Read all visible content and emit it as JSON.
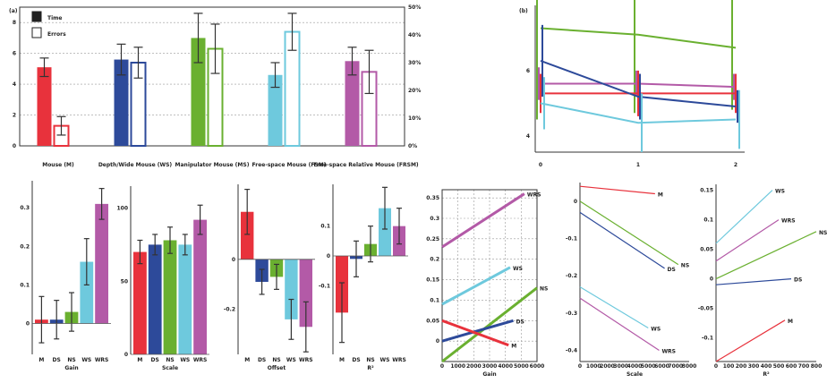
{
  "chart_data": [
    {
      "type": "bar",
      "panel": "(a)",
      "legend": [
        {
          "label": "Time",
          "fill": "#222222"
        },
        {
          "label": "Errors",
          "fill": "#ffffff"
        }
      ],
      "categories": [
        "Mouse (M)",
        "Depth/Wide Mouse (WS)",
        "Manipulator Mouse (MS)",
        "Free-space Mouse (FSM)",
        "Free-space Relative Mouse (FRSM)"
      ],
      "colors": [
        "#e8323c",
        "#2d4a9a",
        "#6ab030",
        "#6ec9dd",
        "#b35aa7"
      ],
      "series": [
        {
          "name": "Time",
          "values": [
            5.1,
            5.6,
            7.0,
            4.6,
            5.5
          ],
          "errors": [
            0.6,
            1.0,
            1.6,
            0.8,
            0.9
          ]
        },
        {
          "name": "Errors",
          "values": [
            1.3,
            5.4,
            6.3,
            7.4,
            4.8
          ],
          "errors": [
            0.6,
            1.0,
            1.6,
            1.2,
            1.4
          ]
        }
      ],
      "ylim": [
        0,
        9
      ],
      "yticks": [
        0,
        2,
        4,
        6,
        8
      ],
      "ytick_labels": [
        "0",
        "2",
        "4",
        "6",
        "8"
      ],
      "y2ticks": [
        0,
        1.8,
        3.6,
        5.4,
        7.2,
        9
      ],
      "y2tick_labels": [
        "0%",
        "10%",
        "20%",
        "30%",
        "40%",
        "50%"
      ],
      "grid": true
    },
    {
      "type": "line",
      "panel": "(b)",
      "x": [
        0,
        1,
        2
      ],
      "xtick_labels": [
        "0",
        "1",
        "2"
      ],
      "ylim": [
        3.5,
        8
      ],
      "yticks": [
        4,
        6
      ],
      "ytick_labels": [
        "4",
        "6"
      ],
      "series": [
        {
          "color": "#6ab030",
          "values": [
            7.3,
            7.1,
            6.7
          ],
          "errors": [
            2.8,
            2.4,
            1.9
          ]
        },
        {
          "color": "#b35aa7",
          "values": [
            5.6,
            5.6,
            5.5
          ],
          "errors": [
            0.5,
            0.4,
            0.4
          ]
        },
        {
          "color": "#e8323c",
          "values": [
            5.3,
            5.3,
            5.3
          ],
          "errors": [
            0.6,
            0.7,
            0.6
          ]
        },
        {
          "color": "#2d4a9a",
          "values": [
            6.3,
            5.2,
            4.9
          ],
          "errors": [
            1.1,
            0.7,
            0.5
          ]
        },
        {
          "color": "#6ec9dd",
          "values": [
            5.0,
            4.4,
            4.5
          ],
          "errors": [
            0.8,
            0.9,
            0.9
          ]
        }
      ]
    },
    {
      "type": "bar",
      "xlabel": "Gain",
      "categories": [
        "M",
        "DS",
        "NS",
        "WS",
        "WRS"
      ],
      "values": [
        0.01,
        0.01,
        0.03,
        0.16,
        0.31
      ],
      "errors": [
        0.06,
        0.05,
        0.05,
        0.06,
        0.04
      ],
      "ylim": [
        -0.08,
        0.37
      ],
      "yticks": [
        0,
        0.1,
        0.2,
        0.3
      ],
      "ytick_labels": [
        "0",
        "0.1",
        "0.2",
        "0.3"
      ]
    },
    {
      "type": "bar",
      "xlabel": "Scale",
      "categories": [
        "M",
        "DS",
        "NS",
        "WS",
        "WRS"
      ],
      "values": [
        70,
        75,
        78,
        75,
        92
      ],
      "errors": [
        8,
        7,
        9,
        7,
        10
      ],
      "ylim": [
        0,
        115
      ],
      "yticks": [
        0,
        50,
        100
      ],
      "ytick_labels": [
        "0",
        "50",
        "100"
      ]
    },
    {
      "type": "bar",
      "xlabel": "Offset",
      "categories": [
        "M",
        "DS",
        "NS",
        "WS",
        "WRS"
      ],
      "values": [
        0.19,
        -0.09,
        -0.07,
        -0.24,
        -0.27
      ],
      "errors": [
        0.09,
        0.05,
        0.05,
        0.08,
        0.1
      ],
      "ylim": [
        -0.38,
        0.3
      ],
      "yticks": [
        -0.2,
        0
      ],
      "ytick_labels": [
        "-0.2",
        "0"
      ]
    },
    {
      "type": "bar",
      "xlabel": "R²",
      "categories": [
        "M",
        "DS",
        "NS",
        "WS",
        "WRS"
      ],
      "values": [
        -0.19,
        -0.01,
        0.04,
        0.16,
        0.1
      ],
      "errors": [
        0.1,
        0.06,
        0.06,
        0.07,
        0.06
      ],
      "ylim": [
        -0.33,
        0.24
      ],
      "yticks": [
        -0.1,
        0,
        0.1
      ],
      "ytick_labels": [
        "-0.1",
        "0",
        "0.1"
      ]
    },
    {
      "type": "line",
      "xlabel": "Gain",
      "xlim": [
        0,
        6000
      ],
      "xticks": [
        0,
        1000,
        2000,
        3000,
        4000,
        5000,
        6000
      ],
      "xtick_labels": [
        "0",
        "1000",
        "2000",
        "3000",
        "4000",
        "5000",
        "6000"
      ],
      "ylim": [
        -0.05,
        0.37
      ],
      "yticks": [
        0,
        0.05,
        0.1,
        0.15,
        0.2,
        0.25,
        0.3,
        0.35
      ],
      "ytick_labels": [
        "0",
        "0.05",
        "0.1",
        "0.15",
        "0.2",
        "0.25",
        "0.3",
        "0.35"
      ],
      "grid": true,
      "series": [
        {
          "name": "WRS",
          "color": "#b35aa7",
          "x": [
            0,
            5200
          ],
          "y": [
            0.23,
            0.36
          ]
        },
        {
          "name": "WS",
          "color": "#6ec9dd",
          "x": [
            0,
            4300
          ],
          "y": [
            0.09,
            0.18
          ]
        },
        {
          "name": "NS",
          "color": "#6ab030",
          "x": [
            0,
            6000
          ],
          "y": [
            -0.05,
            0.13
          ]
        },
        {
          "name": "DS",
          "color": "#2d4a9a",
          "x": [
            0,
            4500
          ],
          "y": [
            0.0,
            0.05
          ]
        },
        {
          "name": "M",
          "color": "#e8323c",
          "x": [
            0,
            4200
          ],
          "y": [
            0.05,
            -0.01
          ]
        }
      ]
    },
    {
      "type": "line",
      "xlabel": "Scale",
      "xlim": [
        0,
        8000
      ],
      "xticks": [
        0,
        1000,
        2000,
        3000,
        4000,
        5000,
        6000,
        7000,
        8000
      ],
      "xtick_labels": [
        "0",
        "1000",
        "2000",
        "3000",
        "4000",
        "5000",
        "6000",
        "7000",
        "8000"
      ],
      "ylim": [
        -0.43,
        0.05
      ],
      "yticks": [
        -0.4,
        -0.3,
        -0.2,
        -0.1,
        0
      ],
      "ytick_labels": [
        "-0.4",
        "-0.3",
        "-0.2",
        "-0.1",
        "0"
      ],
      "series": [
        {
          "name": "M",
          "color": "#e8323c",
          "x": [
            0,
            5500
          ],
          "y": [
            0.04,
            0.02
          ]
        },
        {
          "name": "NS",
          "color": "#6ab030",
          "x": [
            0,
            7200
          ],
          "y": [
            0.0,
            -0.17
          ]
        },
        {
          "name": "DS",
          "color": "#2d4a9a",
          "x": [
            0,
            6200
          ],
          "y": [
            -0.03,
            -0.18
          ]
        },
        {
          "name": "WS",
          "color": "#6ec9dd",
          "x": [
            0,
            5000
          ],
          "y": [
            -0.23,
            -0.34
          ]
        },
        {
          "name": "WRS",
          "color": "#b35aa7",
          "x": [
            0,
            5800
          ],
          "y": [
            -0.26,
            -0.4
          ]
        }
      ]
    },
    {
      "type": "line",
      "xlabel": "R²",
      "xlim": [
        0,
        800
      ],
      "xticks": [
        0,
        100,
        200,
        300,
        400,
        500,
        600,
        700,
        800
      ],
      "xtick_labels": [
        "0",
        "100",
        "200",
        "300",
        "400",
        "500",
        "600",
        "700",
        "800"
      ],
      "ylim": [
        -0.14,
        0.16
      ],
      "yticks": [
        -0.1,
        -0.05,
        0,
        0.05,
        0.1,
        0.15
      ],
      "ytick_labels": [
        "-0.1",
        "-0.05",
        "0",
        "0.05",
        "0.1",
        "0.15"
      ],
      "series": [
        {
          "name": "WS",
          "color": "#6ec9dd",
          "x": [
            0,
            450
          ],
          "y": [
            0.06,
            0.15
          ]
        },
        {
          "name": "WRS",
          "color": "#b35aa7",
          "x": [
            0,
            500
          ],
          "y": [
            0.03,
            0.1
          ]
        },
        {
          "name": "NS",
          "color": "#6ab030",
          "x": [
            0,
            800
          ],
          "y": [
            0.0,
            0.08
          ]
        },
        {
          "name": "DS",
          "color": "#2d4a9a",
          "x": [
            0,
            600
          ],
          "y": [
            -0.01,
            0.0
          ]
        },
        {
          "name": "M",
          "color": "#e8323c",
          "x": [
            0,
            550
          ],
          "y": [
            -0.14,
            -0.07
          ]
        }
      ]
    }
  ]
}
